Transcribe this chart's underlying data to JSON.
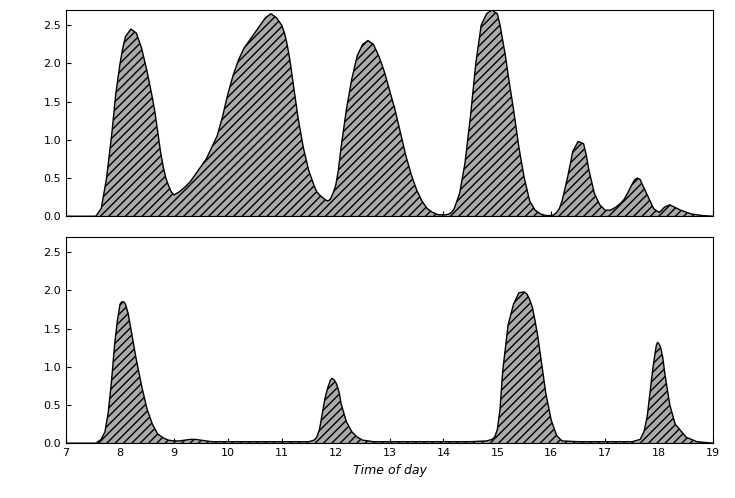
{
  "xlim": [
    7,
    19
  ],
  "ylim": [
    0,
    2.7
  ],
  "xticks": [
    7,
    8,
    9,
    10,
    11,
    12,
    13,
    14,
    15,
    16,
    17,
    18,
    19
  ],
  "yticks": [
    0,
    0.5,
    1.0,
    1.5,
    2.0,
    2.5
  ],
  "xlabel": "Time of day",
  "hatch_pattern": "////",
  "fill_color": "#aaaaaa",
  "edge_color": "#000000",
  "series1_x": [
    7.0,
    7.55,
    7.65,
    7.75,
    7.85,
    7.92,
    8.0,
    8.05,
    8.1,
    8.2,
    8.3,
    8.4,
    8.5,
    8.6,
    8.65,
    8.7,
    8.75,
    8.8,
    8.85,
    8.9,
    8.95,
    9.0,
    9.05,
    9.1,
    9.15,
    9.2,
    9.3,
    9.4,
    9.5,
    9.6,
    9.7,
    9.8,
    9.9,
    10.0,
    10.1,
    10.2,
    10.3,
    10.4,
    10.5,
    10.6,
    10.7,
    10.8,
    10.9,
    10.95,
    11.0,
    11.05,
    11.1,
    11.15,
    11.2,
    11.25,
    11.3,
    11.4,
    11.5,
    11.6,
    11.65,
    11.7,
    11.75,
    11.8,
    11.85,
    11.9,
    11.95,
    12.0,
    12.05,
    12.1,
    12.2,
    12.3,
    12.4,
    12.5,
    12.6,
    12.7,
    12.8,
    12.9,
    13.0,
    13.1,
    13.2,
    13.3,
    13.4,
    13.5,
    13.6,
    13.7,
    13.8,
    13.9,
    14.0,
    14.05,
    14.1,
    14.15,
    14.2,
    14.3,
    14.4,
    14.5,
    14.6,
    14.7,
    14.8,
    14.9,
    15.0,
    15.05,
    15.1,
    15.15,
    15.2,
    15.3,
    15.4,
    15.5,
    15.6,
    15.7,
    15.8,
    15.9,
    16.0,
    16.05,
    16.1,
    16.15,
    16.2,
    16.3,
    16.4,
    16.5,
    16.6,
    16.65,
    16.7,
    16.75,
    16.8,
    16.9,
    17.0,
    17.1,
    17.2,
    17.3,
    17.35,
    17.4,
    17.45,
    17.5,
    17.55,
    17.6,
    17.65,
    17.7,
    17.8,
    17.9,
    18.0,
    18.05,
    18.1,
    18.2,
    18.4,
    18.6,
    18.8,
    19.0
  ],
  "series1_y": [
    0.0,
    0.0,
    0.1,
    0.5,
    1.1,
    1.6,
    2.0,
    2.2,
    2.35,
    2.45,
    2.4,
    2.2,
    1.9,
    1.55,
    1.35,
    1.1,
    0.85,
    0.65,
    0.5,
    0.4,
    0.32,
    0.28,
    0.3,
    0.32,
    0.35,
    0.38,
    0.45,
    0.55,
    0.65,
    0.75,
    0.9,
    1.05,
    1.3,
    1.6,
    1.85,
    2.05,
    2.2,
    2.3,
    2.4,
    2.5,
    2.6,
    2.65,
    2.6,
    2.55,
    2.5,
    2.4,
    2.25,
    2.05,
    1.8,
    1.55,
    1.3,
    0.9,
    0.6,
    0.4,
    0.32,
    0.28,
    0.25,
    0.22,
    0.2,
    0.22,
    0.3,
    0.4,
    0.6,
    0.9,
    1.4,
    1.8,
    2.1,
    2.25,
    2.3,
    2.25,
    2.1,
    1.9,
    1.65,
    1.4,
    1.1,
    0.8,
    0.55,
    0.35,
    0.2,
    0.1,
    0.05,
    0.02,
    0.02,
    0.02,
    0.03,
    0.05,
    0.1,
    0.3,
    0.7,
    1.3,
    2.0,
    2.5,
    2.65,
    2.7,
    2.65,
    2.5,
    2.3,
    2.1,
    1.85,
    1.4,
    0.9,
    0.5,
    0.2,
    0.08,
    0.03,
    0.01,
    0.01,
    0.02,
    0.05,
    0.1,
    0.2,
    0.5,
    0.85,
    0.98,
    0.95,
    0.8,
    0.6,
    0.45,
    0.3,
    0.15,
    0.08,
    0.08,
    0.12,
    0.18,
    0.22,
    0.28,
    0.35,
    0.42,
    0.48,
    0.5,
    0.48,
    0.4,
    0.25,
    0.1,
    0.05,
    0.08,
    0.12,
    0.15,
    0.08,
    0.03,
    0.01,
    0.0
  ],
  "series2_x": [
    7.0,
    7.55,
    7.65,
    7.72,
    7.78,
    7.84,
    7.9,
    7.95,
    8.0,
    8.03,
    8.07,
    8.1,
    8.15,
    8.2,
    8.3,
    8.4,
    8.5,
    8.6,
    8.7,
    8.8,
    8.9,
    9.0,
    9.1,
    9.2,
    9.3,
    9.4,
    9.5,
    9.6,
    9.7,
    9.8,
    9.85,
    9.9,
    9.95,
    10.0,
    10.5,
    11.0,
    11.5,
    11.6,
    11.65,
    11.7,
    11.75,
    11.8,
    11.85,
    11.9,
    11.93,
    11.97,
    12.0,
    12.03,
    12.07,
    12.1,
    12.15,
    12.2,
    12.3,
    12.4,
    12.5,
    12.7,
    12.9,
    13.0,
    13.5,
    14.0,
    14.5,
    14.8,
    14.9,
    14.95,
    15.0,
    15.05,
    15.1,
    15.2,
    15.3,
    15.4,
    15.5,
    15.55,
    15.6,
    15.65,
    15.7,
    15.75,
    15.8,
    15.85,
    15.9,
    16.0,
    16.1,
    16.2,
    16.5,
    17.0,
    17.5,
    17.65,
    17.72,
    17.78,
    17.83,
    17.88,
    17.92,
    17.95,
    17.97,
    18.0,
    18.03,
    18.07,
    18.1,
    18.15,
    18.2,
    18.3,
    18.5,
    18.7,
    19.0
  ],
  "series2_y": [
    0.0,
    0.0,
    0.05,
    0.15,
    0.4,
    0.8,
    1.3,
    1.6,
    1.82,
    1.85,
    1.85,
    1.82,
    1.7,
    1.5,
    1.1,
    0.75,
    0.45,
    0.25,
    0.12,
    0.07,
    0.04,
    0.03,
    0.03,
    0.04,
    0.05,
    0.05,
    0.04,
    0.03,
    0.02,
    0.02,
    0.02,
    0.02,
    0.02,
    0.02,
    0.02,
    0.02,
    0.02,
    0.04,
    0.08,
    0.18,
    0.38,
    0.58,
    0.72,
    0.82,
    0.85,
    0.83,
    0.8,
    0.75,
    0.65,
    0.52,
    0.4,
    0.28,
    0.15,
    0.08,
    0.04,
    0.02,
    0.02,
    0.02,
    0.02,
    0.02,
    0.02,
    0.03,
    0.05,
    0.08,
    0.18,
    0.45,
    0.95,
    1.55,
    1.82,
    1.97,
    1.98,
    1.95,
    1.88,
    1.78,
    1.6,
    1.4,
    1.15,
    0.9,
    0.65,
    0.3,
    0.1,
    0.03,
    0.02,
    0.02,
    0.02,
    0.05,
    0.15,
    0.35,
    0.65,
    0.95,
    1.15,
    1.28,
    1.32,
    1.3,
    1.25,
    1.12,
    0.95,
    0.72,
    0.5,
    0.25,
    0.08,
    0.02,
    0.0
  ]
}
